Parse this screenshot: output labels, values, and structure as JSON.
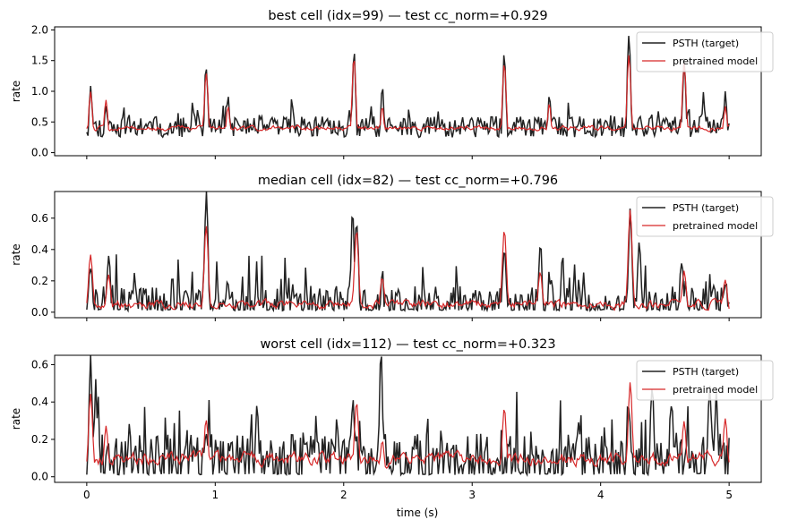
{
  "figure": {
    "xlabel": "time (s)",
    "colors": {
      "target": "#222222",
      "model": "#d62728"
    },
    "legend": {
      "placement": "top-right",
      "target_label": "PSTH (target)",
      "model_label": "pretrained model"
    }
  },
  "chart_data": [
    {
      "type": "line",
      "title": "best cell (idx=99) — test cc_norm=+0.929",
      "ylabel": "rate",
      "xlim": [
        -0.25,
        5.25
      ],
      "ylim": [
        -0.05,
        2.05
      ],
      "xticks": [
        0,
        1,
        2,
        3,
        4,
        5
      ],
      "yticks": [
        0.0,
        0.5,
        1.0,
        1.5,
        2.0
      ],
      "ytick_labels": [
        "0.0",
        "0.5",
        "1.0",
        "1.5",
        "2.0"
      ],
      "baseline_target": 0.42,
      "baseline_model": 0.4,
      "noise": 0.17,
      "seed": 11,
      "series": [
        {
          "name": "PSTH (target)",
          "peaks": [
            [
              0.03,
              1.12
            ],
            [
              0.15,
              0.8
            ],
            [
              0.93,
              1.38
            ],
            [
              1.1,
              0.95
            ],
            [
              2.08,
              1.65
            ],
            [
              2.3,
              1.05
            ],
            [
              3.25,
              1.62
            ],
            [
              3.6,
              0.95
            ],
            [
              4.22,
              1.95
            ],
            [
              4.65,
              1.5
            ],
            [
              4.8,
              0.9
            ],
            [
              4.97,
              0.95
            ]
          ]
        },
        {
          "name": "pretrained model",
          "peaks": [
            [
              0.03,
              1.0
            ],
            [
              0.15,
              0.85
            ],
            [
              0.93,
              1.3
            ],
            [
              1.1,
              0.75
            ],
            [
              2.08,
              1.55
            ],
            [
              2.3,
              0.75
            ],
            [
              3.25,
              1.45
            ],
            [
              3.6,
              0.8
            ],
            [
              4.22,
              1.6
            ],
            [
              4.65,
              1.45
            ],
            [
              4.97,
              0.75
            ]
          ]
        }
      ]
    },
    {
      "type": "line",
      "title": "median cell (idx=82) — test cc_norm=+0.796",
      "ylabel": "rate",
      "xlim": [
        -0.25,
        5.25
      ],
      "ylim": [
        -0.035,
        0.77
      ],
      "xticks": [
        0,
        1,
        2,
        3,
        4,
        5
      ],
      "yticks": [
        0.0,
        0.2,
        0.4,
        0.6
      ],
      "ytick_labels": [
        "0.0",
        "0.2",
        "0.4",
        "0.6"
      ],
      "baseline_target": 0.05,
      "baseline_model": 0.05,
      "noise": 0.12,
      "seed": 23,
      "series": [
        {
          "name": "PSTH (target)",
          "peaks": [
            [
              0.03,
              0.3
            ],
            [
              0.17,
              0.35
            ],
            [
              0.93,
              0.75
            ],
            [
              1.1,
              0.2
            ],
            [
              2.07,
              0.67
            ],
            [
              2.1,
              0.62
            ],
            [
              3.25,
              0.4
            ],
            [
              3.53,
              0.46
            ],
            [
              4.23,
              0.65
            ],
            [
              4.3,
              0.45
            ],
            [
              4.63,
              0.32
            ],
            [
              4.97,
              0.2
            ]
          ]
        },
        {
          "name": "pretrained model",
          "peaks": [
            [
              0.03,
              0.37
            ],
            [
              0.17,
              0.25
            ],
            [
              0.93,
              0.55
            ],
            [
              2.1,
              0.52
            ],
            [
              2.3,
              0.22
            ],
            [
              3.25,
              0.53
            ],
            [
              3.53,
              0.25
            ],
            [
              4.23,
              0.65
            ],
            [
              4.65,
              0.26
            ],
            [
              4.97,
              0.21
            ]
          ]
        }
      ]
    },
    {
      "type": "line",
      "title": "worst cell (idx=112) — test cc_norm=+0.323",
      "ylabel": "rate",
      "xlim": [
        -0.25,
        5.25
      ],
      "ylim": [
        -0.03,
        0.65
      ],
      "xticks": [
        0,
        1,
        2,
        3,
        4,
        5
      ],
      "xtick_labels": [
        "0",
        "1",
        "2",
        "3",
        "4",
        "5"
      ],
      "yticks": [
        0.0,
        0.2,
        0.4,
        0.6
      ],
      "ytick_labels": [
        "0.0",
        "0.2",
        "0.4",
        "0.6"
      ],
      "baseline_target": 0.08,
      "baseline_model": 0.1,
      "noise": 0.15,
      "seed": 37,
      "series": [
        {
          "name": "PSTH (target)",
          "peaks": [
            [
              0.03,
              0.6
            ],
            [
              0.07,
              0.48
            ],
            [
              0.93,
              0.25
            ],
            [
              1.95,
              0.3
            ],
            [
              2.07,
              0.4
            ],
            [
              2.29,
              0.62
            ],
            [
              4.22,
              0.4
            ],
            [
              4.4,
              0.47
            ],
            [
              4.55,
              0.4
            ],
            [
              4.85,
              0.5
            ],
            [
              4.9,
              0.45
            ]
          ]
        },
        {
          "name": "pretrained model",
          "peaks": [
            [
              0.03,
              0.45
            ],
            [
              0.15,
              0.27
            ],
            [
              0.93,
              0.3
            ],
            [
              2.1,
              0.4
            ],
            [
              2.3,
              0.2
            ],
            [
              3.25,
              0.37
            ],
            [
              4.23,
              0.5
            ],
            [
              4.65,
              0.3
            ],
            [
              4.97,
              0.32
            ]
          ]
        }
      ]
    }
  ]
}
